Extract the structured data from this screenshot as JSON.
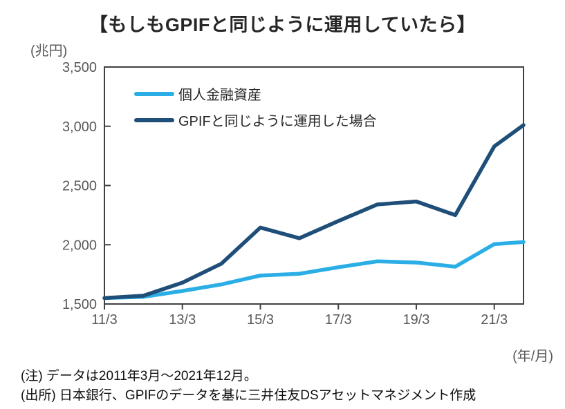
{
  "title": "【もしもGPIFと同じように運用していたら】",
  "y_axis_unit": "(兆円)",
  "x_axis_unit": "(年/月)",
  "notes": [
    "(注) データは2011年3月～2021年12月。",
    "(出所) 日本銀行、GPIFのデータを基に三井住友DSアセットマネジメント作成"
  ],
  "colors": {
    "axis": "#404040",
    "tick_label": "#595959",
    "title": "#262626",
    "note": "#111111",
    "background": "#ffffff"
  },
  "chart_data": {
    "type": "line",
    "title": "【もしもGPIFと同じように運用していたら】",
    "xlabel": "(年/月)",
    "ylabel": "(兆円)",
    "ylim": [
      1500,
      3500
    ],
    "y_ticks": [
      1500,
      2000,
      2500,
      3000,
      3500
    ],
    "y_tick_labels": [
      "1,500",
      "2,000",
      "2,500",
      "3,000",
      "3,500"
    ],
    "xlim_months": [
      0,
      129
    ],
    "x_tick_months": [
      0,
      24,
      48,
      72,
      96,
      120
    ],
    "x_tick_labels": [
      "11/3",
      "13/3",
      "15/3",
      "17/3",
      "19/3",
      "21/3"
    ],
    "x_point_labels": [
      "11/3",
      "12/3",
      "13/3",
      "14/3",
      "15/3",
      "16/3",
      "17/3",
      "18/3",
      "19/3",
      "20/3",
      "21/3",
      "21/12"
    ],
    "x_months_since_2011_03": [
      0,
      12,
      24,
      36,
      48,
      60,
      72,
      84,
      96,
      108,
      120,
      129
    ],
    "grid": false,
    "legend_position": "top-left-inside",
    "series": [
      {
        "name": "個人金融資産",
        "color": "#2AAEE5",
        "values": [
          1550,
          1560,
          1610,
          1665,
          1740,
          1755,
          1810,
          1860,
          1850,
          1815,
          2005,
          2023
        ]
      },
      {
        "name": "GPIFと同じように運用した場合",
        "color": "#1F4E79",
        "values": [
          1550,
          1570,
          1680,
          1840,
          2145,
          2055,
          2200,
          2340,
          2365,
          2250,
          2830,
          3010
        ]
      }
    ]
  }
}
